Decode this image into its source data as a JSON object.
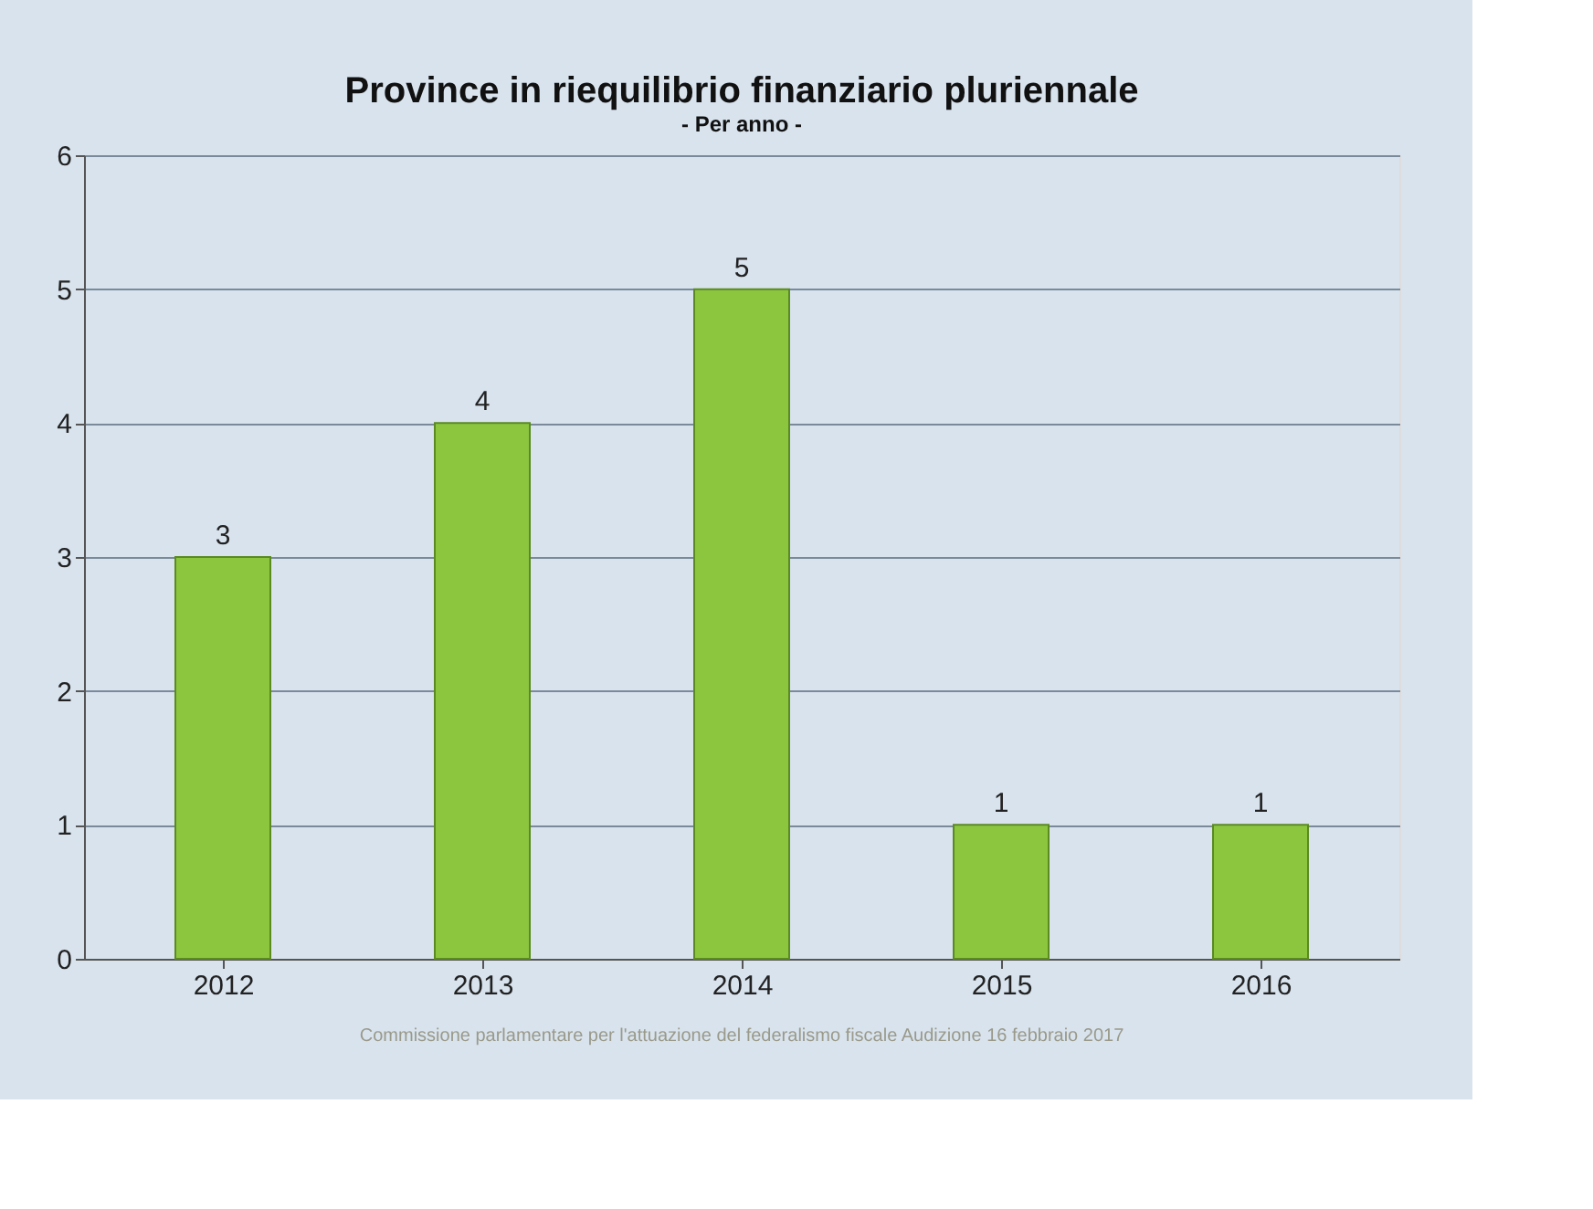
{
  "chart_data": {
    "type": "bar",
    "title": "Province in riequilibrio finanziario pluriennale",
    "subtitle": "- Per anno -",
    "categories": [
      "2012",
      "2013",
      "2014",
      "2015",
      "2016"
    ],
    "values": [
      3,
      4,
      5,
      1,
      1
    ],
    "color": "#8cc63f",
    "ylim": [
      0,
      6
    ],
    "yticks": [
      0,
      1,
      2,
      3,
      4,
      5,
      6
    ],
    "grid": "y",
    "data_labels": true,
    "annotations": [
      "Commissione parlamentare per l'attuazione del federalismo fiscale Audizione 16 febbraio 2017"
    ]
  }
}
